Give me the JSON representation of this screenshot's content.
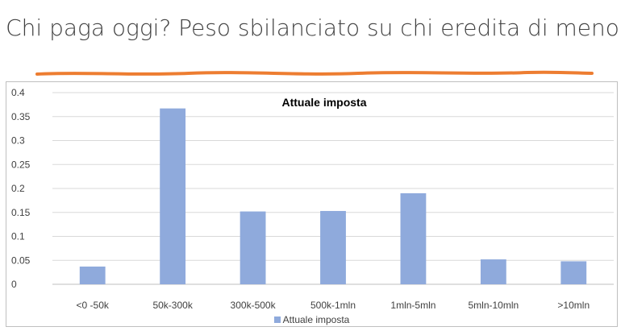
{
  "slide": {
    "title": "Chi paga oggi? Peso sbilanciato su chi eredita di meno",
    "underline_color": "#ed7d31"
  },
  "chart_data": {
    "type": "bar",
    "title": "Attuale imposta",
    "categories": [
      "<0 -50k",
      "50k-300k",
      "300k-500k",
      "500k-1mln",
      "1mln-5mln",
      "5mln-10mln",
      ">10mln"
    ],
    "series": [
      {
        "name": "Attuale imposta",
        "color": "#8faadc",
        "values": [
          0.037,
          0.367,
          0.152,
          0.153,
          0.19,
          0.052,
          0.048
        ]
      }
    ],
    "y_ticks": [
      "0",
      "0.05",
      "0.1",
      "0.15",
      "0.2",
      "0.25",
      "0.3",
      "0.35",
      "0.4"
    ],
    "ylim": [
      0,
      0.4
    ],
    "grid": true,
    "legend_position": "bottom"
  }
}
